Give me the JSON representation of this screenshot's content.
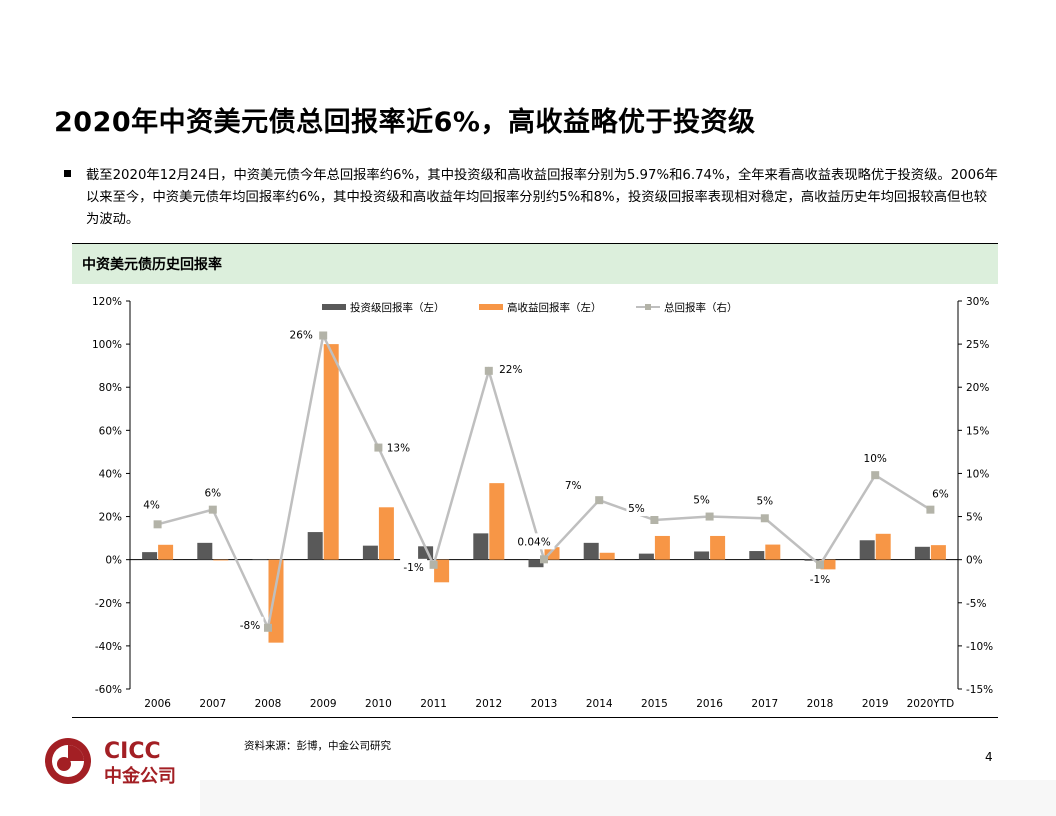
{
  "title": "2020年中资美元债总回报率近6%，高收益略优于投资级",
  "bullet": "截至2020年12月24日，中资美元债今年总回报率约6%，其中投资级和高收益回报率分别为5.97%和6.74%，全年来看高收益表现略优于投资级。2006年以来至今，中资美元债年均回报率约6%，其中投资级和高收益年均回报率分别约5%和8%，投资级回报率表现相对稳定，高收益历史年均回报较高但也较为波动。",
  "panel_title": "中资美元债历史回报率",
  "source": "资料来源：彭博，中金公司研究",
  "page_number": "4",
  "logo": {
    "latin": "CICC",
    "chinese": "中金公司",
    "mark_color": "#a31f24"
  },
  "colors": {
    "ig": "#595959",
    "hy": "#f79646",
    "total": "#bfbfbf",
    "total_marker": "#b3b3a8",
    "panel_bg": "#dcefdc"
  },
  "chart_data": {
    "type": "bar",
    "categories": [
      "2006",
      "2007",
      "2008",
      "2009",
      "2010",
      "2011",
      "2012",
      "2013",
      "2014",
      "2015",
      "2016",
      "2017",
      "2018",
      "2019",
      "2020YTD"
    ],
    "series": [
      {
        "name": "投资级回报率（左）",
        "type": "bar",
        "axis": "left",
        "values": [
          3.5,
          7.8,
          0.3,
          12.8,
          6.5,
          6.2,
          12.2,
          -3.5,
          7.8,
          2.8,
          3.8,
          4.0,
          -0.5,
          9.0,
          5.97
        ]
      },
      {
        "name": "高收益回报率（左）",
        "type": "bar",
        "axis": "left",
        "values": [
          6.9,
          -0.3,
          -38.5,
          100.0,
          24.3,
          -10.5,
          35.5,
          5.8,
          3.2,
          11.0,
          11.0,
          7.0,
          -4.5,
          12.0,
          6.74
        ]
      },
      {
        "name": "总回报率（右）",
        "type": "line",
        "axis": "right",
        "values": [
          4.1,
          5.8,
          -7.9,
          26.0,
          13.0,
          -0.6,
          21.9,
          0.04,
          6.9,
          4.6,
          5.0,
          4.8,
          -0.6,
          9.8,
          5.8
        ]
      }
    ],
    "point_labels": [
      "4%",
      "6%",
      "-8%",
      "26%",
      "13%",
      "-1%",
      "22%",
      "0.04%",
      "7%",
      "5%",
      "5%",
      "5%",
      "-1%",
      "10%",
      "6%"
    ],
    "y_left": {
      "ticks": [
        "-60%",
        "-40%",
        "-20%",
        "0%",
        "20%",
        "40%",
        "60%",
        "80%",
        "100%",
        "120%"
      ],
      "range": [
        -60,
        120
      ]
    },
    "y_right": {
      "ticks": [
        "-15%",
        "-10%",
        "-5%",
        "0%",
        "5%",
        "10%",
        "15%",
        "20%",
        "25%",
        "30%"
      ],
      "range": [
        -15,
        30
      ]
    },
    "legend_position": "top-center"
  }
}
